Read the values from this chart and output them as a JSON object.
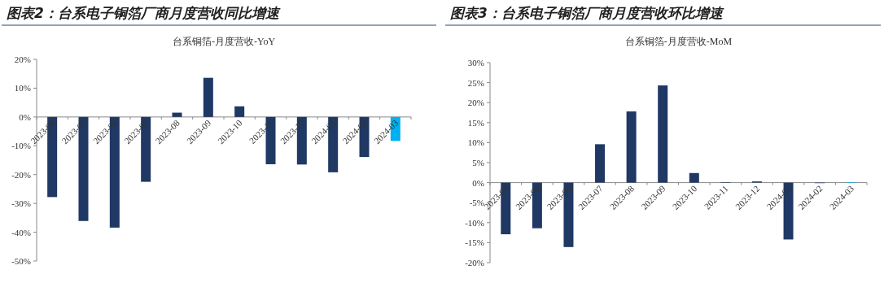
{
  "chart_data": [
    {
      "type": "bar",
      "title": "图表2：台系电子铜箔厂商月度营收同比增速",
      "subtitle": "台系铜箔-月度营收-YoY",
      "categories": [
        "2023-04",
        "2023-05",
        "2023-06",
        "2023-07",
        "2023-08",
        "2023-09",
        "2023-10",
        "2023-11",
        "2023-12",
        "2024-01",
        "2024-02",
        "2024-03"
      ],
      "values": [
        -27.8,
        -36.1,
        -38.4,
        -22.5,
        1.5,
        13.6,
        3.7,
        -16.4,
        -16.5,
        -19.2,
        -13.9,
        -8.3
      ],
      "colors": [
        "#1f3864",
        "#1f3864",
        "#1f3864",
        "#1f3864",
        "#1f3864",
        "#1f3864",
        "#1f3864",
        "#1f3864",
        "#1f3864",
        "#1f3864",
        "#1f3864",
        "#00b0f0"
      ],
      "ylim": [
        -50,
        20
      ],
      "yticks": [
        {
          "value": -50,
          "label": "-50%"
        },
        {
          "value": -40,
          "label": "-40%"
        },
        {
          "value": -30,
          "label": "-30%"
        },
        {
          "value": -20,
          "label": "-20%"
        },
        {
          "value": -10,
          "label": "-10%"
        },
        {
          "value": 0,
          "label": "0%"
        },
        {
          "value": 10,
          "label": "10%"
        },
        {
          "value": 20,
          "label": "20%"
        }
      ]
    },
    {
      "type": "bar",
      "title": "图表3：台系电子铜箔厂商月度营收环比增速",
      "subtitle": "台系铜箔-月度营收-MoM",
      "categories": [
        "2023-04",
        "2023-05",
        "2023-06",
        "2023-07",
        "2023-08",
        "2023-09",
        "2023-10",
        "2023-11",
        "2023-12",
        "2024-01",
        "2024-02",
        "2024-03"
      ],
      "values": [
        -12.9,
        -11.4,
        -16.1,
        9.6,
        17.8,
        24.3,
        2.4,
        0.1,
        0.3,
        -14.2,
        0.0,
        0.1
      ],
      "colors": [
        "#1f3864",
        "#1f3864",
        "#1f3864",
        "#1f3864",
        "#1f3864",
        "#1f3864",
        "#1f3864",
        "#1f3864",
        "#1f3864",
        "#1f3864",
        "#1f3864",
        "#00b0f0"
      ],
      "ylim": [
        -20,
        30
      ],
      "yticks": [
        {
          "value": -20,
          "label": "-20%"
        },
        {
          "value": -15,
          "label": "-15%"
        },
        {
          "value": -10,
          "label": "-10%"
        },
        {
          "value": -5,
          "label": "-5%"
        },
        {
          "value": 0,
          "label": "0%"
        },
        {
          "value": 5,
          "label": "5%"
        },
        {
          "value": 10,
          "label": "10%"
        },
        {
          "value": 15,
          "label": "15%"
        },
        {
          "value": 20,
          "label": "20%"
        },
        {
          "value": 25,
          "label": "25%"
        },
        {
          "value": 30,
          "label": "30%"
        }
      ]
    }
  ]
}
